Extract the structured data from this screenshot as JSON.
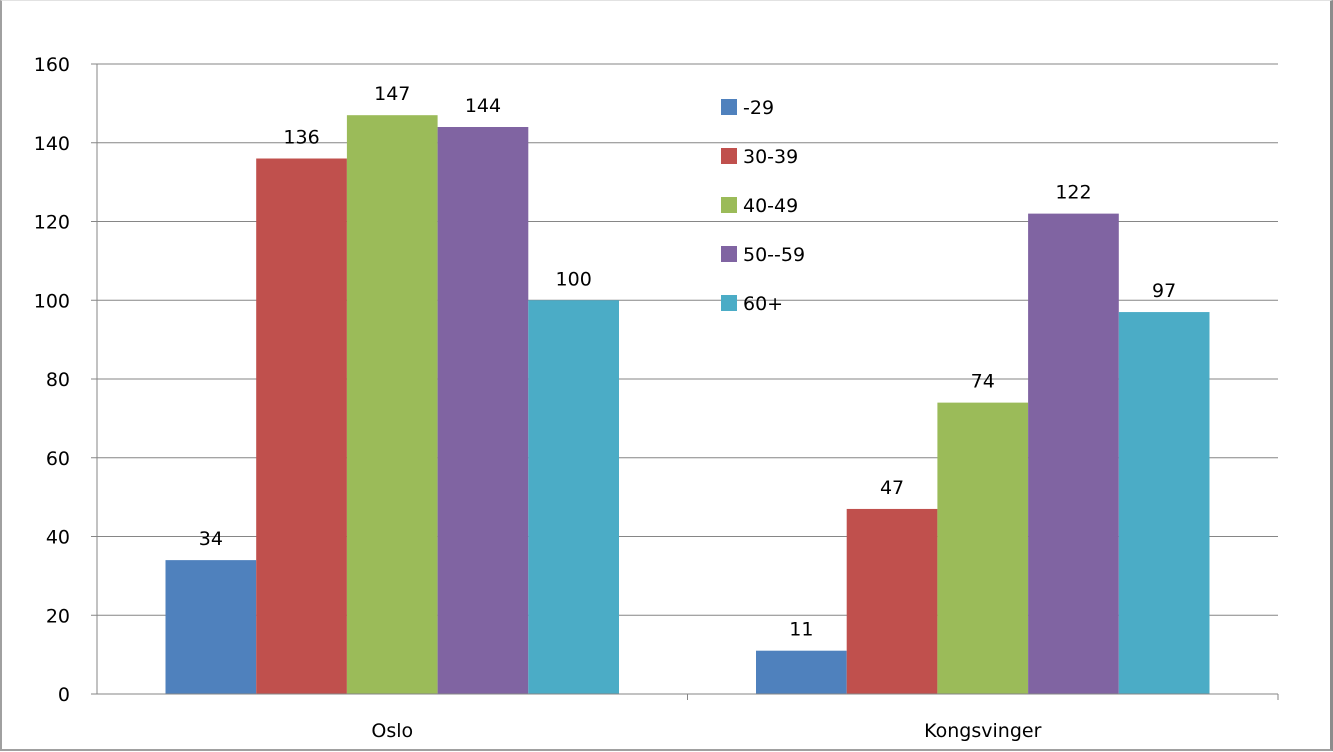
{
  "chart_data": {
    "type": "bar",
    "title": "",
    "xlabel": "",
    "ylabel": "",
    "categories": [
      "Oslo",
      "Kongsvinger"
    ],
    "series": [
      {
        "name": "-29",
        "color": "#4f81bd",
        "values": [
          34,
          11
        ]
      },
      {
        "name": "30-39",
        "color": "#c0504d",
        "values": [
          136,
          47
        ]
      },
      {
        "name": "40-49",
        "color": "#9bbb59",
        "values": [
          147,
          74
        ]
      },
      {
        "name": "50--59",
        "color": "#8064a2",
        "values": [
          144,
          122
        ]
      },
      {
        "name": "60+",
        "color": "#4bacc6",
        "values": [
          100,
          97
        ]
      }
    ],
    "ylim": [
      0,
      160
    ],
    "yticks": [
      0,
      20,
      40,
      60,
      80,
      100,
      120,
      140,
      160
    ],
    "grid": true,
    "data_labels": true,
    "legend_position": "top-center"
  }
}
